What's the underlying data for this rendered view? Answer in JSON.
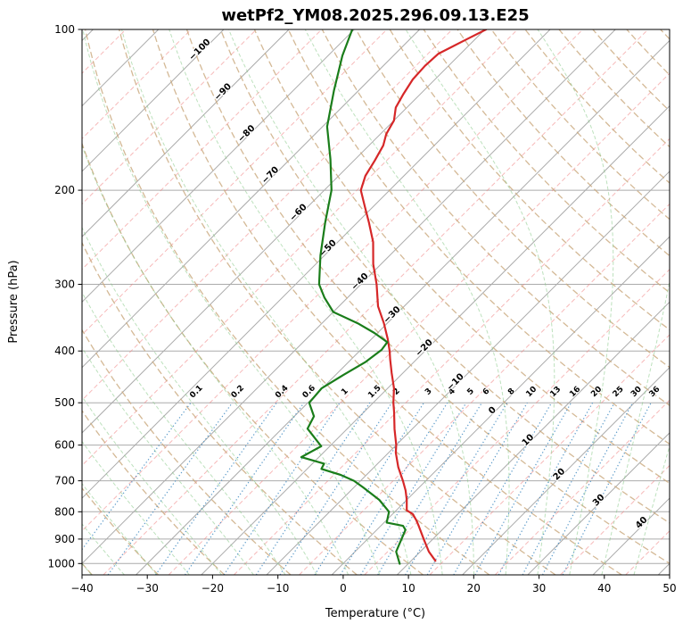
{
  "chart_data": {
    "type": "line",
    "variant": "skew-t-log-p",
    "title": "wetPf2_YM08.2025.296.09.13.E25",
    "xlabel": "Temperature (°C)",
    "ylabel": "Pressure (hPa)",
    "xlim": [
      -40,
      50
    ],
    "p_top": 100,
    "p_bottom": 1050,
    "p_ref": 1000,
    "skew_c_per_decade": 81.7,
    "x_ticks": [
      -40,
      -30,
      -20,
      -10,
      0,
      10,
      20,
      30,
      40,
      50
    ],
    "p_ticks": [
      100,
      200,
      300,
      400,
      500,
      600,
      700,
      800,
      900,
      1000
    ],
    "colors": {
      "border": "#000000",
      "grid": "#ababab",
      "isotherm": "#ababab",
      "isotherm_minor": "#f08080",
      "dry_adiabat": "#c9a87c",
      "moist_adiabat": "#86c986",
      "mixing": "#4a90c4",
      "temperature": "#d62728",
      "dewpoint": "#1a7d1a",
      "label_neg": "#2f7ec0",
      "label_zero": "#7f7f7f",
      "label_pos": "#cc3333"
    },
    "isotherms": {
      "min": -160,
      "max": 50,
      "step": 10,
      "minor_offset": 5
    },
    "isotherm_labels": [
      [
        -100,
        110
      ],
      [
        -90,
        132
      ],
      [
        -80,
        158
      ],
      [
        -70,
        189
      ],
      [
        -60,
        222
      ],
      [
        -50,
        259
      ],
      [
        -40,
        299
      ],
      [
        -30,
        345
      ],
      [
        -20,
        398
      ],
      [
        -10,
        461
      ],
      [
        0,
        521
      ],
      [
        10,
        592
      ],
      [
        20,
        686
      ],
      [
        30,
        767
      ],
      [
        40,
        845
      ]
    ],
    "dry_adiabats": {
      "min": -40,
      "max": 190,
      "step": 10
    },
    "moist_adiabats": {
      "min": -40,
      "max": 45,
      "step": 5
    },
    "mixing_ratios": {
      "values": [
        0.1,
        0.2,
        0.4,
        0.6,
        1,
        1.5,
        2,
        3,
        4,
        5,
        6,
        8,
        10,
        13,
        16,
        20,
        25,
        30,
        36
      ],
      "label_pressure": 480,
      "top_pressure": 500
    },
    "series": [
      {
        "name": "temperature",
        "color_key": "temperature",
        "points": [
          [
            988,
            13.7
          ],
          [
            950,
            11.3
          ],
          [
            900,
            8.6
          ],
          [
            850,
            5.8
          ],
          [
            830,
            4.6
          ],
          [
            808,
            3.1
          ],
          [
            795,
            1.6
          ],
          [
            784,
            1.1
          ],
          [
            760,
            0.0
          ],
          [
            730,
            -1.6
          ],
          [
            700,
            -3.5
          ],
          [
            660,
            -6.3
          ],
          [
            620,
            -8.9
          ],
          [
            600,
            -10.0
          ],
          [
            560,
            -12.7
          ],
          [
            520,
            -15.4
          ],
          [
            500,
            -16.9
          ],
          [
            470,
            -19.0
          ],
          [
            440,
            -21.7
          ],
          [
            415,
            -24.0
          ],
          [
            400,
            -25.4
          ],
          [
            380,
            -27.5
          ],
          [
            355,
            -30.5
          ],
          [
            330,
            -34.0
          ],
          [
            300,
            -37.6
          ],
          [
            275,
            -41.2
          ],
          [
            250,
            -44.6
          ],
          [
            230,
            -48.2
          ],
          [
            215,
            -51.2
          ],
          [
            200,
            -54.4
          ],
          [
            188,
            -55.9
          ],
          [
            176,
            -56.8
          ],
          [
            165,
            -57.8
          ],
          [
            157,
            -59.1
          ],
          [
            148,
            -60.0
          ],
          [
            140,
            -61.7
          ],
          [
            132,
            -62.6
          ],
          [
            124,
            -63.4
          ],
          [
            117,
            -63.6
          ],
          [
            111,
            -63.4
          ],
          [
            105,
            -61.5
          ],
          [
            100,
            -59.8
          ]
        ]
      },
      {
        "name": "dewpoint",
        "color_key": "dewpoint",
        "points": [
          [
            1001,
            8.7
          ],
          [
            950,
            6.3
          ],
          [
            900,
            5.2
          ],
          [
            865,
            4.4
          ],
          [
            850,
            3.4
          ],
          [
            838,
            0.4
          ],
          [
            800,
            -0.9
          ],
          [
            760,
            -4.2
          ],
          [
            720,
            -8.6
          ],
          [
            700,
            -11.0
          ],
          [
            682,
            -14.0
          ],
          [
            665,
            -17.8
          ],
          [
            650,
            -18.2
          ],
          [
            632,
            -22.7
          ],
          [
            603,
            -21.3
          ],
          [
            559,
            -26.1
          ],
          [
            530,
            -27.0
          ],
          [
            500,
            -29.8
          ],
          [
            470,
            -30.1
          ],
          [
            443,
            -28.8
          ],
          [
            419,
            -27.4
          ],
          [
            398,
            -26.8
          ],
          [
            385,
            -27.1
          ],
          [
            370,
            -30.5
          ],
          [
            355,
            -34.5
          ],
          [
            338,
            -40.0
          ],
          [
            318,
            -43.5
          ],
          [
            300,
            -46.4
          ],
          [
            265,
            -50.6
          ],
          [
            230,
            -54.9
          ],
          [
            200,
            -58.9
          ],
          [
            175,
            -63.8
          ],
          [
            152,
            -69.3
          ],
          [
            130,
            -73.8
          ],
          [
            112,
            -77.8
          ],
          [
            100,
            -80.3
          ]
        ]
      }
    ]
  }
}
